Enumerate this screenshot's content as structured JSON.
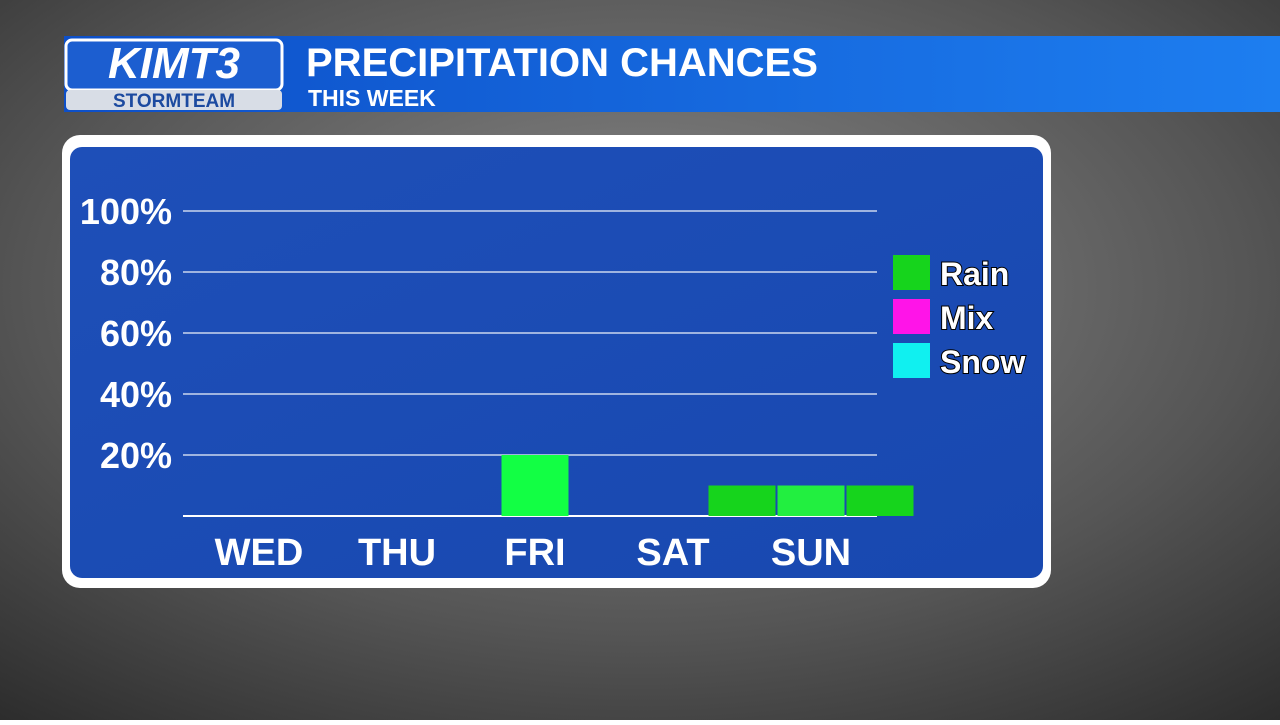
{
  "header": {
    "logo": "KIMT3",
    "logo_sub": "STORMTEAM"
  },
  "chart_data": {
    "type": "bar",
    "title": "PRECIPITATION CHANCES",
    "subtitle": "THIS WEEK",
    "categories": [
      "WED",
      null,
      "THU",
      null,
      "FRI",
      null,
      "SAT",
      null,
      "SUN",
      null
    ],
    "series": [
      {
        "name": "Rain",
        "color": "#16d41c",
        "colors": [
          "#16d41c",
          "#16d41c",
          "#16d41c",
          "#16d41c",
          "#12ff44",
          "#16d41c",
          "#16d41c",
          "#16d41c",
          "#22ef40",
          "#16d41c"
        ],
        "values": [
          0,
          0,
          0,
          0,
          20,
          0,
          0,
          10,
          10,
          10
        ]
      },
      {
        "name": "Mix",
        "color": "#ff14e8",
        "values": [
          0,
          0,
          0,
          0,
          0,
          0,
          0,
          0,
          0,
          0
        ]
      },
      {
        "name": "Snow",
        "color": "#10f0f0",
        "values": [
          0,
          0,
          0,
          0,
          0,
          0,
          0,
          0,
          0,
          0
        ]
      }
    ],
    "ylim": [
      0,
      100
    ],
    "yticks": [
      {
        "value": 20,
        "label": "20%"
      },
      {
        "value": 40,
        "label": "40%"
      },
      {
        "value": 60,
        "label": "60%"
      },
      {
        "value": 80,
        "label": "80%"
      },
      {
        "value": 100,
        "label": "100%"
      }
    ],
    "grid": true,
    "legend": "right"
  }
}
